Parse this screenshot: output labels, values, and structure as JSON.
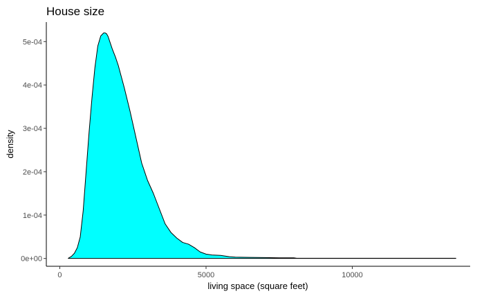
{
  "chart_data": {
    "type": "area",
    "title": "House size",
    "xlabel": "living space (square feet)",
    "ylabel": "density",
    "xlim": [
      -460,
      14030
    ],
    "ylim": [
      -1.8e-05,
      0.000545
    ],
    "x_ticks": [
      0,
      5000,
      10000
    ],
    "x_tick_labels": [
      "0",
      "5000",
      "10000"
    ],
    "y_ticks": [
      0,
      0.0001,
      0.0002,
      0.0003,
      0.0004,
      0.0005
    ],
    "y_tick_labels": [
      "0e+00",
      "1e-04",
      "2e-04",
      "3e-04",
      "4e-04",
      "5e-04"
    ],
    "grid": false,
    "fill_color": "#00ffff",
    "line_color": "#000000",
    "series": [
      {
        "x": [
          290,
          400,
          500,
          600,
          700,
          800,
          900,
          1000,
          1100,
          1200,
          1300,
          1400,
          1500,
          1550,
          1600,
          1650,
          1700,
          1800,
          1900,
          2000,
          2200,
          2400,
          2600,
          2800,
          3000,
          3200,
          3400,
          3600,
          3800,
          4000,
          4200,
          4400,
          4600,
          4800,
          5000,
          5200,
          5500,
          5800,
          6000,
          6500,
          7000,
          7500,
          8000,
          8100,
          9000,
          10000,
          11000,
          12000,
          13540
        ],
        "y": [
          5e-07,
          5e-06,
          1.2e-05,
          2.5e-05,
          5e-05,
          0.00011,
          0.0002,
          0.00029,
          0.00037,
          0.00044,
          0.00049,
          0.000513,
          0.00052,
          0.00052,
          0.000518,
          0.000512,
          0.000502,
          0.000482,
          0.000465,
          0.000445,
          0.000395,
          0.00034,
          0.00028,
          0.00022,
          0.00018,
          0.00015,
          0.000115,
          8e-05,
          6e-05,
          4.7e-05,
          3.7e-05,
          3.3e-05,
          2.5e-05,
          1.5e-05,
          1e-05,
          8e-06,
          7e-06,
          4e-06,
          3e-06,
          2.5e-06,
          2e-06,
          1.5e-06,
          1.5e-06,
          5e-07,
          5e-07,
          5e-07,
          5e-07,
          5e-07,
          5e-07
        ]
      }
    ]
  }
}
